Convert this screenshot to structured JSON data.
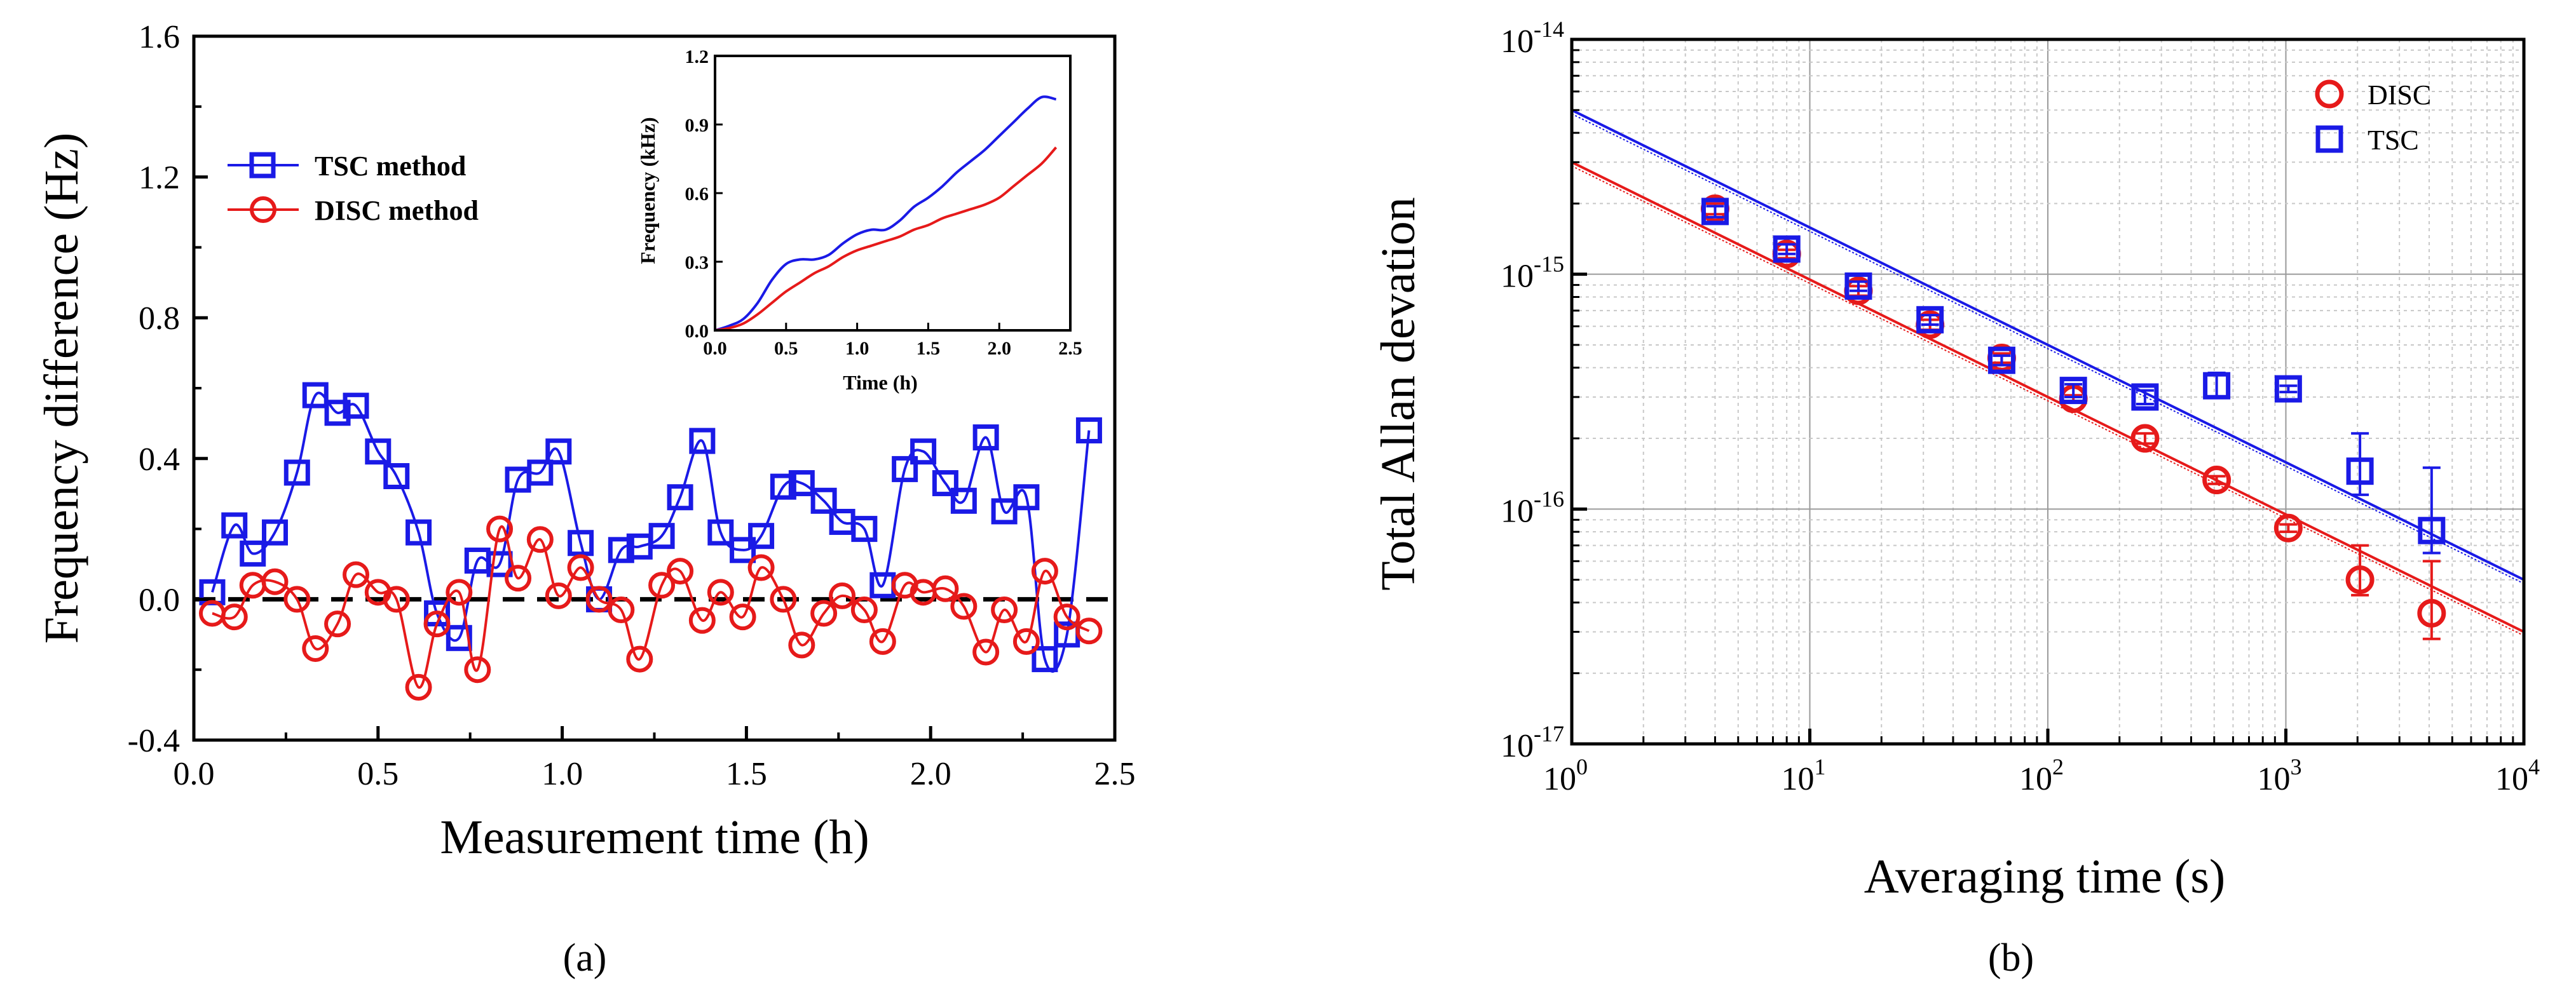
{
  "colors": {
    "tsc": "#1a1ae6",
    "disc": "#e61a1a",
    "zero_line": "#000000",
    "grid": "#c8c8c8"
  },
  "chart_data": [
    {
      "id": "a",
      "type": "line",
      "panel_label": "(a)",
      "xlabel": "Measurement time (h)",
      "ylabel": "Frequency difference (Hz)",
      "xlim": [
        0.0,
        2.5
      ],
      "ylim": [
        -0.4,
        1.6
      ],
      "xticks": [
        "0.0",
        "0.5",
        "1.0",
        "1.5",
        "2.0",
        "2.5"
      ],
      "yticks": [
        "-0.4",
        "0.0",
        "0.4",
        "0.8",
        "1.2",
        "1.6"
      ],
      "xtick_values": [
        0.0,
        0.5,
        1.0,
        1.5,
        2.0,
        2.5
      ],
      "ytick_values": [
        -0.4,
        0.0,
        0.4,
        0.8,
        1.2,
        1.6
      ],
      "legend": [
        "TSC method",
        "DISC method"
      ],
      "series": [
        {
          "name": "TSC method",
          "marker": "square",
          "x": [
            0.05,
            0.11,
            0.16,
            0.22,
            0.28,
            0.33,
            0.39,
            0.44,
            0.5,
            0.55,
            0.61,
            0.66,
            0.72,
            0.77,
            0.83,
            0.88,
            0.94,
            0.99,
            1.05,
            1.1,
            1.16,
            1.21,
            1.27,
            1.32,
            1.38,
            1.43,
            1.49,
            1.54,
            1.6,
            1.65,
            1.71,
            1.76,
            1.82,
            1.87,
            1.93,
            1.98,
            2.04,
            2.09,
            2.15,
            2.2,
            2.26,
            2.31,
            2.37,
            2.43
          ],
          "y": [
            0.02,
            0.21,
            0.13,
            0.19,
            0.36,
            0.58,
            0.53,
            0.55,
            0.42,
            0.35,
            0.19,
            -0.04,
            -0.11,
            0.11,
            0.1,
            0.34,
            0.36,
            0.42,
            0.16,
            0.0,
            0.14,
            0.15,
            0.18,
            0.29,
            0.45,
            0.19,
            0.14,
            0.18,
            0.32,
            0.33,
            0.28,
            0.22,
            0.2,
            0.04,
            0.37,
            0.42,
            0.33,
            0.28,
            0.46,
            0.25,
            0.29,
            -0.17,
            -0.1,
            0.48
          ]
        },
        {
          "name": "DISC method",
          "marker": "circle",
          "x": [
            0.05,
            0.11,
            0.16,
            0.22,
            0.28,
            0.33,
            0.39,
            0.44,
            0.5,
            0.55,
            0.61,
            0.66,
            0.72,
            0.77,
            0.83,
            0.88,
            0.94,
            0.99,
            1.05,
            1.1,
            1.16,
            1.21,
            1.27,
            1.32,
            1.38,
            1.43,
            1.49,
            1.54,
            1.6,
            1.65,
            1.71,
            1.76,
            1.82,
            1.87,
            1.93,
            1.98,
            2.04,
            2.09,
            2.15,
            2.2,
            2.26,
            2.31,
            2.37,
            2.43
          ],
          "y": [
            -0.04,
            -0.05,
            0.04,
            0.05,
            0.0,
            -0.14,
            -0.07,
            0.07,
            0.02,
            0.0,
            -0.25,
            -0.07,
            0.02,
            -0.2,
            0.2,
            0.06,
            0.17,
            0.01,
            0.09,
            0.0,
            -0.03,
            -0.17,
            0.04,
            0.08,
            -0.06,
            0.02,
            -0.05,
            0.09,
            0.0,
            -0.13,
            -0.04,
            0.01,
            -0.03,
            -0.12,
            0.04,
            0.02,
            0.03,
            -0.02,
            -0.15,
            -0.03,
            -0.12,
            0.08,
            -0.05,
            -0.09
          ]
        }
      ],
      "zero_reference_line": 0.0,
      "inset": {
        "type": "line",
        "xlabel": "Time (h)",
        "ylabel": "Frequency (kHz)",
        "xlim": [
          0.0,
          2.5
        ],
        "ylim": [
          0.0,
          1.2
        ],
        "xticks": [
          "0.0",
          "0.5",
          "1.0",
          "1.5",
          "2.0",
          "2.5"
        ],
        "yticks": [
          "0.0",
          "0.3",
          "0.6",
          "0.9",
          "1.2"
        ],
        "xtick_values": [
          0.0,
          0.5,
          1.0,
          1.5,
          2.0,
          2.5
        ],
        "ytick_values": [
          0.0,
          0.3,
          0.6,
          0.9,
          1.2
        ],
        "series": [
          {
            "name": "TSC",
            "x": [
              0.0,
              0.1,
              0.2,
              0.3,
              0.4,
              0.5,
              0.6,
              0.7,
              0.8,
              0.9,
              1.0,
              1.1,
              1.2,
              1.3,
              1.4,
              1.5,
              1.6,
              1.7,
              1.8,
              1.9,
              2.0,
              2.1,
              2.2,
              2.3,
              2.4
            ],
            "y": [
              0.0,
              0.02,
              0.05,
              0.12,
              0.22,
              0.29,
              0.31,
              0.31,
              0.33,
              0.38,
              0.42,
              0.44,
              0.44,
              0.48,
              0.54,
              0.58,
              0.63,
              0.69,
              0.74,
              0.79,
              0.85,
              0.91,
              0.97,
              1.02,
              1.01
            ]
          },
          {
            "name": "DISC",
            "x": [
              0.0,
              0.1,
              0.2,
              0.3,
              0.4,
              0.5,
              0.6,
              0.7,
              0.8,
              0.9,
              1.0,
              1.1,
              1.2,
              1.3,
              1.4,
              1.5,
              1.6,
              1.7,
              1.8,
              1.9,
              2.0,
              2.1,
              2.2,
              2.3,
              2.4
            ],
            "y": [
              0.0,
              0.01,
              0.03,
              0.07,
              0.12,
              0.17,
              0.21,
              0.25,
              0.28,
              0.32,
              0.35,
              0.37,
              0.39,
              0.41,
              0.44,
              0.46,
              0.49,
              0.51,
              0.53,
              0.55,
              0.58,
              0.63,
              0.68,
              0.73,
              0.8
            ]
          }
        ]
      }
    },
    {
      "id": "b",
      "type": "scatter",
      "panel_label": "(b)",
      "xlabel": "Averaging time (s)",
      "ylabel": "Total Allan devation",
      "xscale": "log",
      "yscale": "log",
      "xlim": [
        1,
        10000
      ],
      "ylim": [
        1e-17,
        1e-14
      ],
      "xticks": [
        {
          "base": "10",
          "exp": "0",
          "value": 1
        },
        {
          "base": "10",
          "exp": "1",
          "value": 10
        },
        {
          "base": "10",
          "exp": "2",
          "value": 100
        },
        {
          "base": "10",
          "exp": "3",
          "value": 1000
        },
        {
          "base": "10",
          "exp": "4",
          "value": 10000
        }
      ],
      "yticks": [
        {
          "base": "10",
          "exp": "-17",
          "value": 1e-17
        },
        {
          "base": "10",
          "exp": "-16",
          "value": 1e-16
        },
        {
          "base": "10",
          "exp": "-15",
          "value": 1e-15
        },
        {
          "base": "10",
          "exp": "-14",
          "value": 1e-14
        }
      ],
      "grid": true,
      "legend": [
        "DISC",
        "TSC"
      ],
      "legend_position": "top-right",
      "series": [
        {
          "name": "DISC",
          "marker": "circle",
          "x": [
            4,
            8,
            16,
            32,
            64,
            128,
            256,
            512,
            1024,
            2048,
            4096
          ],
          "y": [
            1.9e-15,
            1.22e-15,
            8.5e-16,
            6.1e-16,
            4.4e-16,
            2.95e-16,
            2e-16,
            1.33e-16,
            8.3e-17,
            5e-17,
            3.6e-17
          ],
          "err_low": [
            1.8e-15,
            1.17e-15,
            8.1e-16,
            5.8e-16,
            4.2e-16,
            2.85e-16,
            1.9e-16,
            1.28e-16,
            8e-17,
            4.3e-17,
            2.8e-17
          ],
          "err_high": [
            2e-15,
            1.27e-15,
            8.9e-16,
            6.4e-16,
            4.6e-16,
            3.05e-16,
            2.1e-16,
            1.38e-16,
            8.6e-17,
            7e-17,
            6e-17
          ]
        },
        {
          "name": "TSC",
          "marker": "square",
          "x": [
            4,
            8,
            16,
            32,
            64,
            128,
            256,
            512,
            1024,
            2048,
            4096
          ],
          "y": [
            1.85e-15,
            1.28e-15,
            8.9e-16,
            6.4e-16,
            4.3e-16,
            3.2e-16,
            3e-16,
            3.35e-16,
            3.25e-16,
            1.45e-16,
            8.1e-17
          ],
          "err_low": [
            1.75e-15,
            1.22e-15,
            8.5e-16,
            6.1e-16,
            4.1e-16,
            3e-16,
            2.8e-16,
            3e-16,
            3.15e-16,
            1.15e-16,
            6.5e-17
          ],
          "err_high": [
            1.95e-15,
            1.34e-15,
            9.3e-16,
            6.7e-16,
            4.5e-16,
            3.4e-16,
            3.2e-16,
            3.8e-16,
            3.35e-16,
            2.1e-16,
            1.5e-16
          ]
        }
      ],
      "fit_lines": [
        {
          "name": "DISC fit",
          "x": [
            1,
            10000
          ],
          "y": [
            3e-15,
            3e-17
          ]
        },
        {
          "name": "TSC fit",
          "x": [
            1,
            10000
          ],
          "y": [
            5e-15,
            5e-17
          ]
        }
      ]
    }
  ]
}
